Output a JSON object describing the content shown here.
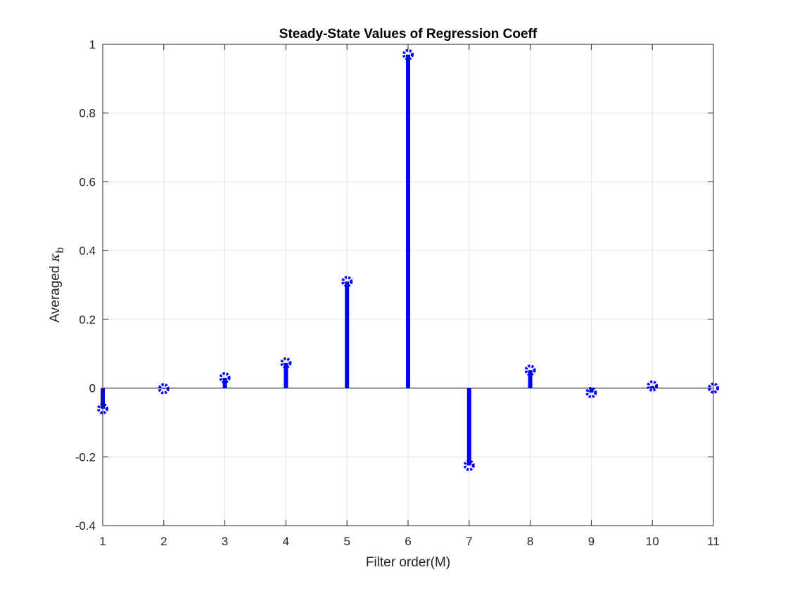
{
  "chart_data": {
    "type": "stem",
    "title": "Steady-State Values of Regression Coeff",
    "xlabel": "Filter order(M)",
    "ylabel_prefix": "Averaged ",
    "ylabel_symbol": "κ",
    "ylabel_subscript": "b",
    "xlim": [
      1,
      11
    ],
    "ylim": [
      -0.4,
      1
    ],
    "xticks": [
      "1",
      "2",
      "3",
      "4",
      "5",
      "6",
      "7",
      "8",
      "9",
      "10",
      "11"
    ],
    "yticks": [
      "-0.4",
      "-0.2",
      "0",
      "0.2",
      "0.4",
      "0.6",
      "0.8",
      "1"
    ],
    "grid": true,
    "x": [
      1,
      2,
      3,
      4,
      5,
      6,
      7,
      8,
      9,
      10,
      11
    ],
    "values": [
      -0.06,
      -0.002,
      0.03,
      0.073,
      0.31,
      0.97,
      -0.225,
      0.052,
      -0.013,
      0.006,
      0.0
    ],
    "color": "#0000ff"
  }
}
